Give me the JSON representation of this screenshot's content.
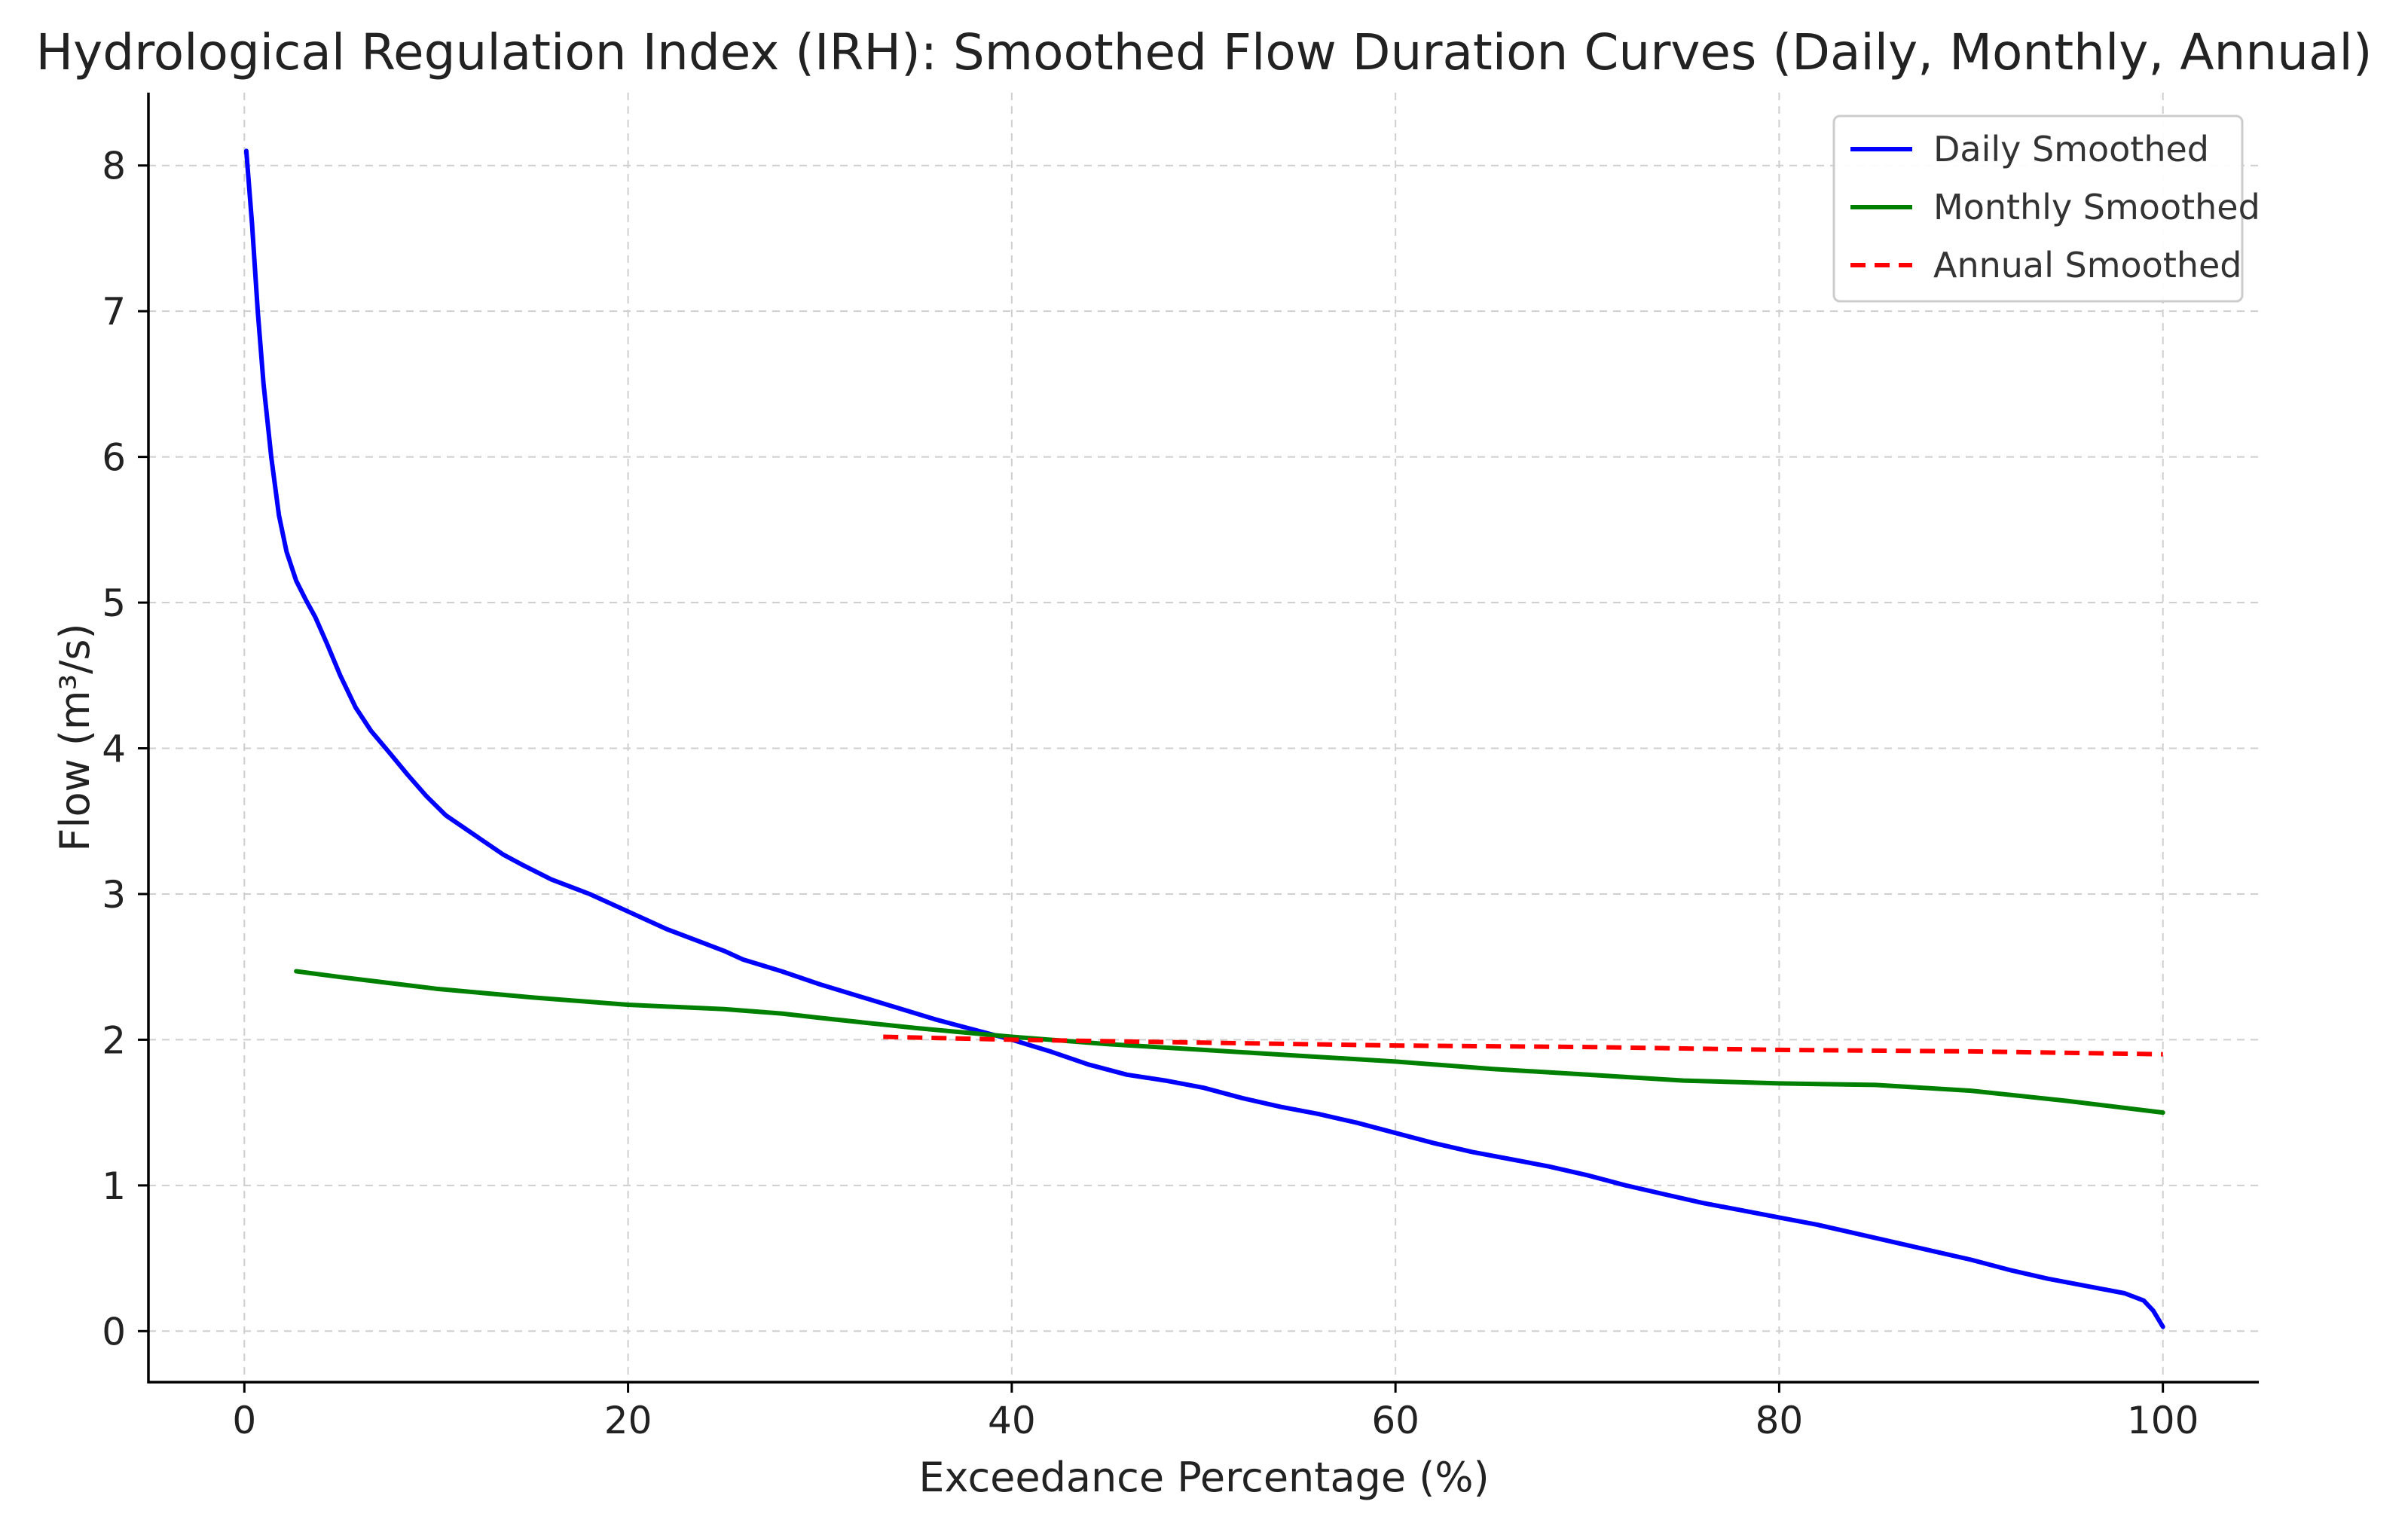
{
  "chart_data": {
    "type": "line",
    "title": "Hydrological Regulation Index (IRH): Smoothed Flow Duration Curves (Daily, Monthly, Annual)",
    "xlabel": "Exceedance Percentage (%)",
    "ylabel": "Flow (m³/s)",
    "xlim": [
      -5,
      105
    ],
    "ylim": [
      -0.35,
      8.5
    ],
    "xticks": [
      0,
      20,
      40,
      60,
      80,
      100
    ],
    "yticks": [
      0,
      1,
      2,
      3,
      4,
      5,
      6,
      7,
      8
    ],
    "grid": true,
    "legend_position": "top-right",
    "series": [
      {
        "name": "Daily Smoothed",
        "color": "#0000ff",
        "dash": "solid",
        "x": [
          0.1,
          0.4,
          0.7,
          1.0,
          1.4,
          1.8,
          2.2,
          2.7,
          3.2,
          3.7,
          4.3,
          5.0,
          5.8,
          6.6,
          7.5,
          8.5,
          9.5,
          10.5,
          11.5,
          12.5,
          13.5,
          14.5,
          16,
          18,
          20,
          22,
          24,
          25,
          26,
          28,
          30,
          32,
          34,
          36,
          38,
          40,
          42,
          44,
          46,
          48,
          50,
          52,
          54,
          56,
          58,
          60,
          62,
          64,
          66,
          68,
          70,
          72,
          74,
          76,
          78,
          80,
          82,
          84,
          86,
          88,
          90,
          92,
          94,
          96,
          98,
          99,
          99.5,
          100
        ],
        "y": [
          8.1,
          7.6,
          7.0,
          6.5,
          6.0,
          5.6,
          5.35,
          5.15,
          5.02,
          4.9,
          4.72,
          4.5,
          4.28,
          4.12,
          3.98,
          3.82,
          3.67,
          3.54,
          3.45,
          3.36,
          3.27,
          3.2,
          3.1,
          3.0,
          2.88,
          2.76,
          2.66,
          2.61,
          2.55,
          2.47,
          2.38,
          2.3,
          2.22,
          2.14,
          2.07,
          2.0,
          1.92,
          1.83,
          1.76,
          1.72,
          1.67,
          1.6,
          1.54,
          1.49,
          1.43,
          1.36,
          1.29,
          1.23,
          1.18,
          1.13,
          1.07,
          1.0,
          0.94,
          0.88,
          0.83,
          0.78,
          0.73,
          0.67,
          0.61,
          0.55,
          0.49,
          0.42,
          0.36,
          0.31,
          0.26,
          0.21,
          0.14,
          0.03
        ]
      },
      {
        "name": "Monthly Smoothed",
        "color": "#008000",
        "dash": "solid",
        "x": [
          2.7,
          5,
          10,
          15,
          20,
          25,
          28,
          30,
          35,
          40,
          45,
          50,
          55,
          60,
          65,
          70,
          75,
          80,
          85,
          90,
          95,
          100
        ],
        "y": [
          2.47,
          2.43,
          2.35,
          2.29,
          2.24,
          2.21,
          2.18,
          2.15,
          2.08,
          2.02,
          1.97,
          1.93,
          1.89,
          1.85,
          1.8,
          1.76,
          1.72,
          1.7,
          1.69,
          1.65,
          1.58,
          1.5
        ]
      },
      {
        "name": "Annual Smoothed",
        "color": "#ff0000",
        "dash": "dashed",
        "x": [
          33.3,
          40,
          50,
          60,
          70,
          80,
          90,
          100
        ],
        "y": [
          2.02,
          2.0,
          1.98,
          1.96,
          1.95,
          1.93,
          1.92,
          1.9
        ]
      }
    ]
  }
}
